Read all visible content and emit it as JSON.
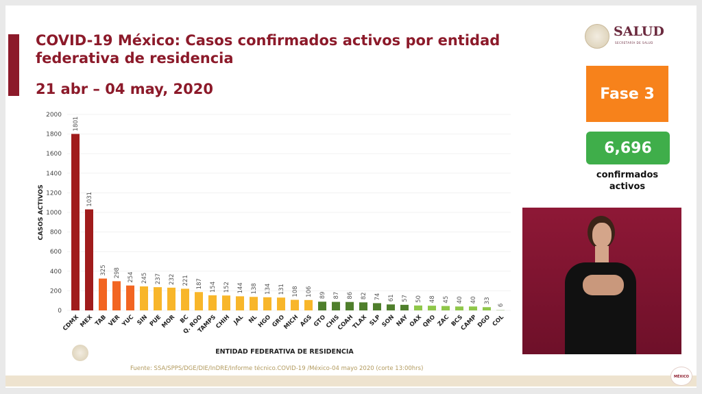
{
  "header": {
    "title_line1": "COVID-19 México: Casos confirmados activos por entidad",
    "title_line2": "federativa de residencia",
    "date_range": "21 abr – 04 may, 2020"
  },
  "logo": {
    "name": "SALUD",
    "subtitle": "SECRETARÍA DE SALUD",
    "icon": "mexico-seal-icon"
  },
  "phase": {
    "label": "Fase 3",
    "color": "#f7821b"
  },
  "confirmed": {
    "value": "6,696",
    "label_line1": "confirmados",
    "label_line2": "activos",
    "color": "#3fae4a"
  },
  "footer": {
    "source": "Fuente: SSA/SPPS/DGE/DIE/InDRE/Informe técnico.COVID-19 /México-04 mayo 2020 (corte 13:00hrs)",
    "brand": "MÉXICO"
  },
  "chart_data": {
    "type": "bar",
    "xlabel": "ENTIDAD FEDERATIVA DE  RESIDENCIA",
    "ylabel": "CASOS ACTIVOS",
    "ylim": [
      0,
      2000
    ],
    "yticks": [
      0,
      200,
      400,
      600,
      800,
      1000,
      1200,
      1400,
      1600,
      1800,
      2000
    ],
    "grid": true,
    "categories": [
      "CDMX",
      "MEX",
      "TAB",
      "VER",
      "YUC",
      "SIN",
      "PUE",
      "MOR",
      "BC",
      "Q. ROO",
      "TAMPS",
      "CHIH",
      "JAL",
      "NL",
      "HGO",
      "GRO",
      "MICH",
      "AGS",
      "GTO",
      "CHIS",
      "COAH",
      "TLAX",
      "SLP",
      "SON",
      "NAY",
      "OAX",
      "QRO",
      "ZAC",
      "BCS",
      "CAMP",
      "DGO",
      "COL"
    ],
    "values": [
      1801,
      1031,
      325,
      298,
      254,
      245,
      237,
      232,
      221,
      187,
      154,
      152,
      144,
      138,
      134,
      131,
      108,
      106,
      89,
      87,
      86,
      82,
      74,
      61,
      57,
      50,
      48,
      45,
      40,
      40,
      33,
      6
    ],
    "color_groups": [
      {
        "color": "#a01c1c",
        "count": 2
      },
      {
        "color": "#f26522",
        "count": 3
      },
      {
        "color": "#f8b62a",
        "count": 13
      },
      {
        "color": "#4f7f2c",
        "count": 7
      },
      {
        "color": "#8fc74a",
        "count": 6
      },
      {
        "color": "#c9d9b8",
        "count": 1
      }
    ]
  }
}
